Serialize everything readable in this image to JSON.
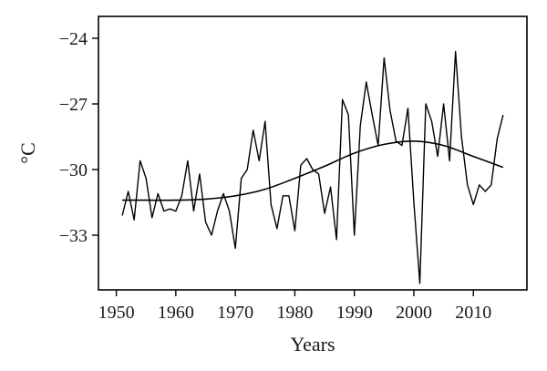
{
  "chart_data": {
    "type": "line",
    "title": "",
    "xlabel": "Years",
    "ylabel": "°C",
    "xlim": [
      1947,
      2019
    ],
    "ylim": [
      -35.5,
      -23
    ],
    "x_ticks": [
      1950,
      1960,
      1970,
      1980,
      1990,
      2000,
      2010
    ],
    "x_tick_labels": [
      "1950",
      "1960",
      "1970",
      "1980",
      "1990",
      "2000",
      "2010"
    ],
    "y_ticks": [
      -33,
      -30,
      -27,
      -24
    ],
    "y_tick_labels": [
      "−33",
      "−30",
      "−27",
      "−24"
    ],
    "grid": false,
    "legend": "none",
    "line_color": "#000000",
    "series": [
      {
        "x": [
          1951,
          1952,
          1953,
          1954,
          1955,
          1956,
          1957,
          1958,
          1959,
          1960,
          1961,
          1962,
          1963,
          1964,
          1965,
          1966,
          1967,
          1968,
          1969,
          1970,
          1971,
          1972,
          1973,
          1974,
          1975,
          1976,
          1977,
          1978,
          1979,
          1980,
          1981,
          1982,
          1983,
          1984,
          1985,
          1986,
          1987,
          1988,
          1989,
          1990,
          1991,
          1992,
          1993,
          1994,
          1995,
          1996,
          1997,
          1998,
          1999,
          2000,
          2001,
          2002,
          2003,
          2004,
          2005,
          2006,
          2007,
          2008,
          2009,
          2010,
          2011,
          2012,
          2013,
          2014,
          2015
        ],
        "values": [
          -32.1,
          -31.0,
          -32.3,
          -29.6,
          -30.4,
          -32.2,
          -31.1,
          -31.9,
          -31.8,
          -31.9,
          -31.2,
          -29.6,
          -31.9,
          -30.2,
          -32.4,
          -33.0,
          -31.9,
          -31.1,
          -31.9,
          -33.6,
          -30.4,
          -30.0,
          -28.2,
          -29.6,
          -27.8,
          -31.6,
          -32.7,
          -31.2,
          -31.2,
          -32.8,
          -29.8,
          -29.5,
          -30.0,
          -30.2,
          -32.0,
          -30.8,
          -33.2,
          -26.8,
          -27.5,
          -33.0,
          -28.0,
          -26.0,
          -27.5,
          -28.9,
          -24.9,
          -27.3,
          -28.7,
          -28.9,
          -27.2,
          -31.5,
          -35.2,
          -27.0,
          -27.8,
          -29.4,
          -27.0,
          -29.6,
          -24.6,
          -28.5,
          -30.7,
          -31.6,
          -30.7,
          -31.0,
          -30.7,
          -28.6,
          -27.5
        ]
      },
      {
        "x": [
          1951,
          1955,
          1960,
          1965,
          1970,
          1975,
          1980,
          1985,
          1990,
          1995,
          2000,
          2005,
          2010,
          2015
        ],
        "values": [
          -31.4,
          -31.4,
          -31.4,
          -31.35,
          -31.2,
          -30.9,
          -30.4,
          -29.85,
          -29.25,
          -28.85,
          -28.7,
          -28.9,
          -29.4,
          -29.9
        ]
      }
    ]
  }
}
